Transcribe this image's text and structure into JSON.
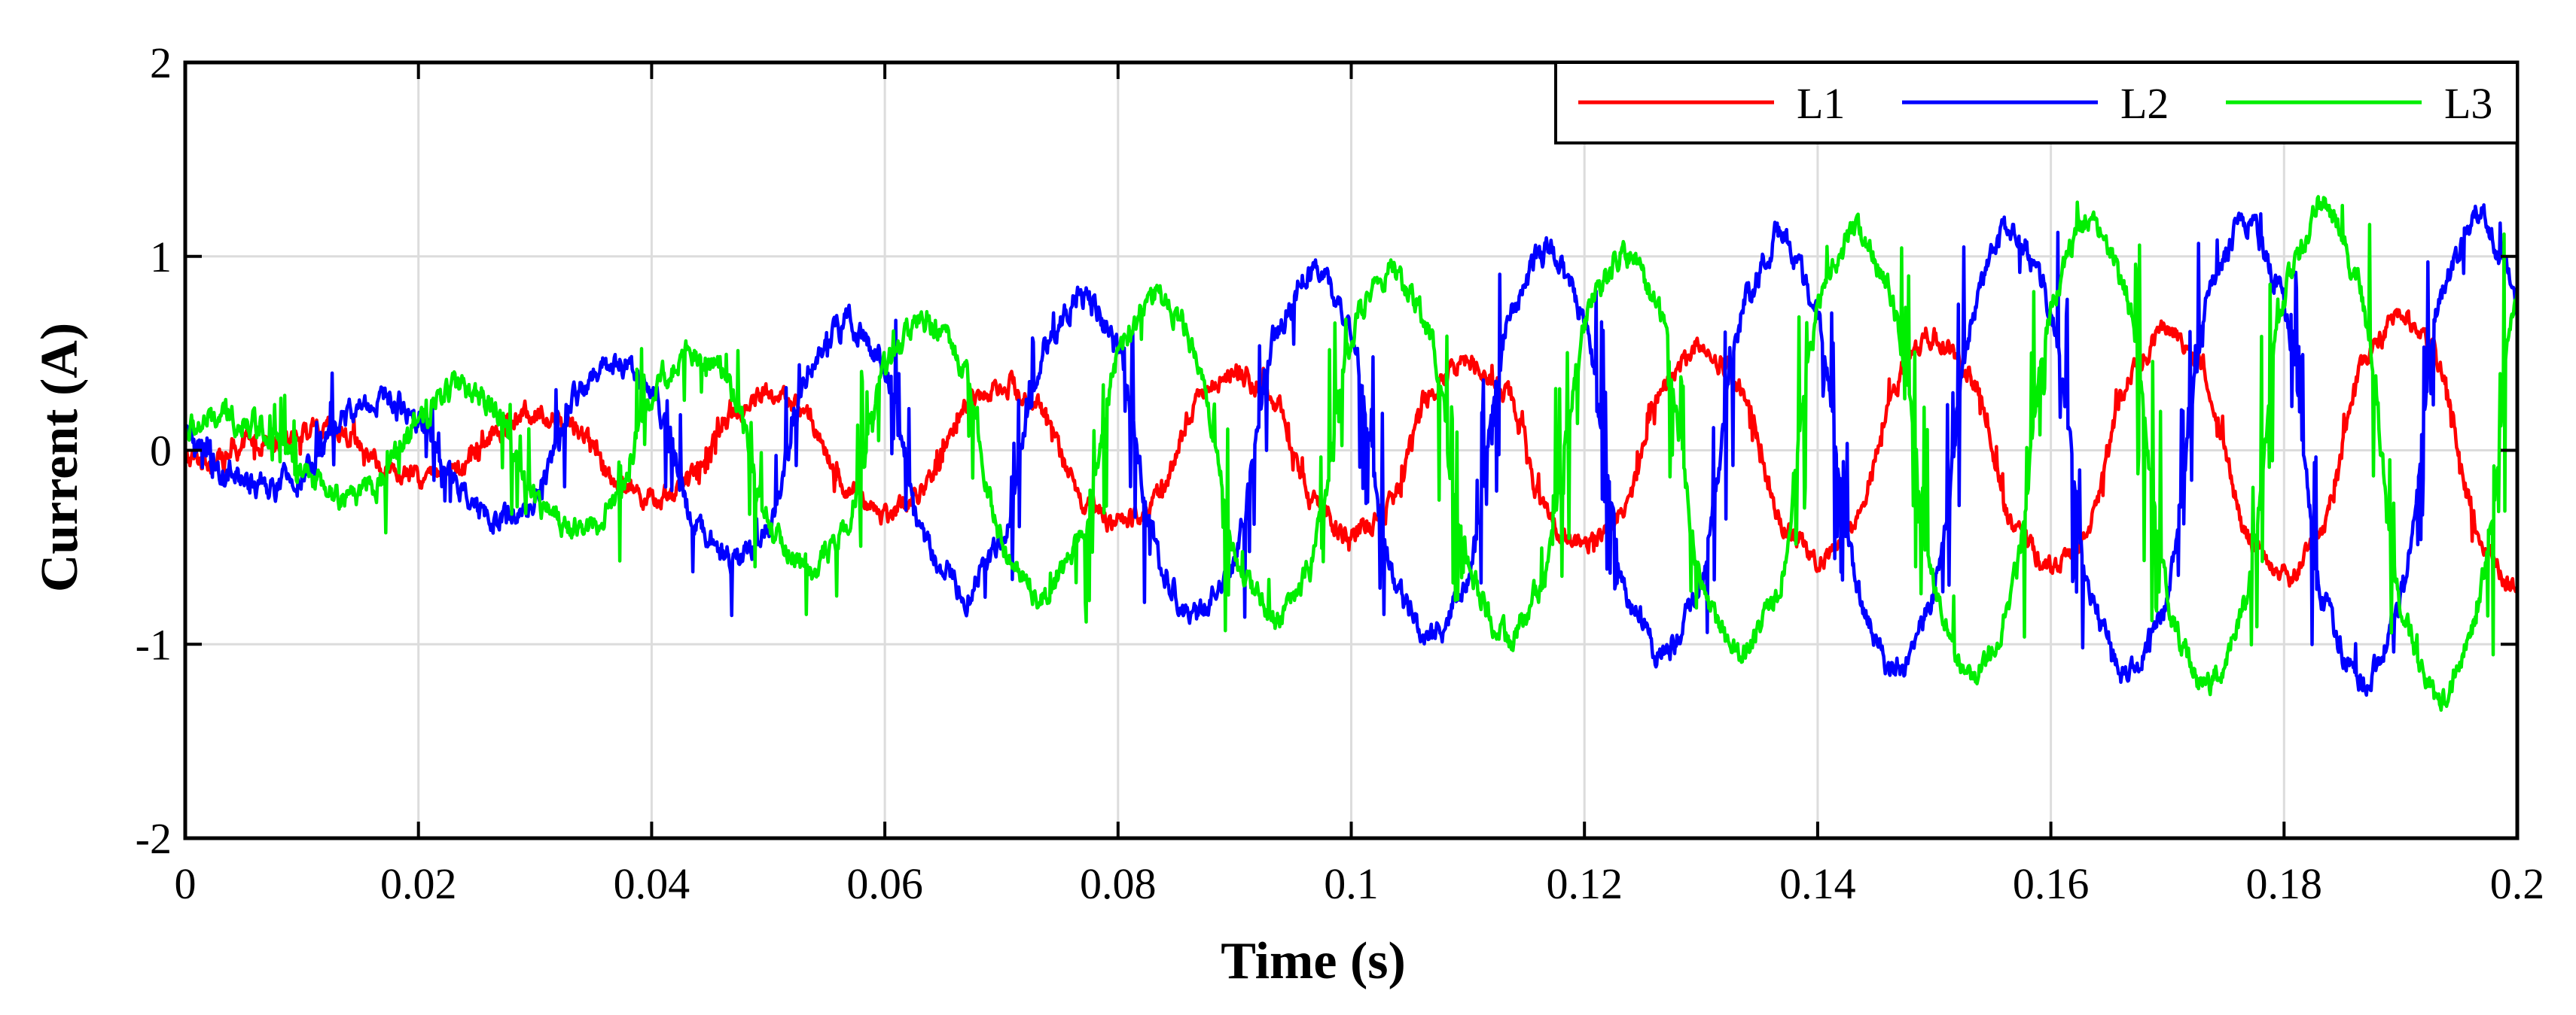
{
  "chart_data": {
    "type": "line",
    "title": "",
    "xlabel": "Time (s)",
    "ylabel": "Current (A)",
    "xlim": [
      0,
      0.2
    ],
    "ylim": [
      -2,
      2
    ],
    "xticks": [
      0,
      0.02,
      0.04,
      0.06,
      0.08,
      0.1,
      0.12,
      0.14,
      0.16,
      0.18,
      0.2
    ],
    "xtick_labels": [
      "0",
      "0.02",
      "0.04",
      "0.06",
      "0.08",
      "0.1",
      "0.12",
      "0.14",
      "0.16",
      "0.18",
      "0.2"
    ],
    "yticks": [
      -2,
      -1,
      0,
      1,
      2
    ],
    "ytick_labels": [
      "-2",
      "-1",
      "0",
      "1",
      "2"
    ],
    "grid": true,
    "legend": {
      "position": "top-right",
      "orientation": "horizontal"
    },
    "series": [
      {
        "name": "L1",
        "color": "#ff0000",
        "frequency_hz": 50,
        "phase_deg": -90,
        "amplitude_envelope": {
          "t": [
            0,
            0.02,
            0.05,
            0.1,
            0.15,
            0.2
          ],
          "amp": [
            0.05,
            0.15,
            0.3,
            0.45,
            0.6,
            0.72
          ]
        },
        "noise": 0.04,
        "spikes": 0.1
      },
      {
        "name": "L2",
        "color": "#0000ff",
        "frequency_hz": 50,
        "phase_deg": 150,
        "amplitude_envelope": {
          "t": [
            0,
            0.02,
            0.05,
            0.1,
            0.15,
            0.2
          ],
          "amp": [
            0.15,
            0.3,
            0.62,
            1.0,
            1.18,
            1.27
          ]
        },
        "noise": 0.05,
        "spikes": 0.4
      },
      {
        "name": "L3",
        "color": "#00ee00",
        "frequency_hz": 50,
        "phase_deg": 30,
        "amplitude_envelope": {
          "t": [
            0,
            0.02,
            0.05,
            0.1,
            0.15,
            0.2
          ],
          "amp": [
            0.15,
            0.3,
            0.6,
            0.95,
            1.2,
            1.35
          ]
        },
        "noise": 0.05,
        "spikes": 0.45
      }
    ]
  }
}
